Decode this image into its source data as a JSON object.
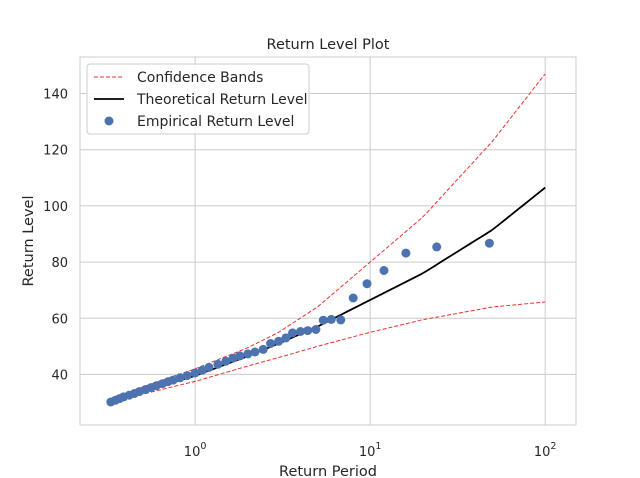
{
  "chart_data": {
    "type": "scatter",
    "title": "Return Level Plot",
    "xlabel": "Return Period",
    "ylabel": "Return Level",
    "xscale": "log",
    "xlim": [
      0.22,
      150
    ],
    "ylim": [
      22,
      153
    ],
    "grid": true,
    "legend_position": "top-left",
    "x_ticks": [
      {
        "value": 1,
        "base": "10",
        "exp": "0"
      },
      {
        "value": 10,
        "base": "10",
        "exp": "1"
      },
      {
        "value": 100,
        "base": "10",
        "exp": "2"
      }
    ],
    "y_ticks": [
      40,
      60,
      80,
      100,
      120,
      140
    ],
    "colors": {
      "empirical": "#4c72b0",
      "theoretical": "#000000",
      "confidence": "#e8312f",
      "grid": "#cccccc",
      "axes": "#cccccc"
    },
    "legend": [
      {
        "label": "Confidence Bands",
        "style": "dashed-line",
        "color": "#e8312f"
      },
      {
        "label": "Theoretical Return Level",
        "style": "line",
        "color": "#000000"
      },
      {
        "label": "Empirical Return Level",
        "style": "marker",
        "color": "#4c72b0"
      }
    ],
    "series": [
      {
        "name": "Confidence Bands",
        "kind": "dashed",
        "x": [
          0.33,
          0.5,
          1,
          2,
          3,
          5,
          10,
          20,
          50,
          100
        ],
        "values": [
          30.7,
          35.5,
          42.0,
          49.5,
          55.0,
          64.0,
          80.0,
          96.0,
          123.0,
          147.0
        ]
      },
      {
        "name": "Confidence Bands",
        "kind": "dashed",
        "x": [
          0.33,
          0.5,
          1,
          2,
          3,
          5,
          10,
          20,
          50,
          100
        ],
        "values": [
          29.4,
          33.0,
          37.5,
          43.0,
          46.0,
          50.0,
          55.0,
          59.5,
          64.0,
          65.8
        ]
      },
      {
        "name": "Theoretical Return Level",
        "kind": "line",
        "x": [
          0.33,
          0.5,
          1,
          2,
          3,
          5,
          10,
          20,
          50,
          100
        ],
        "values": [
          30.0,
          34.0,
          39.5,
          46.5,
          51.0,
          57.0,
          66.5,
          76.0,
          91.5,
          106.5
        ]
      },
      {
        "name": "Empirical Return Level",
        "kind": "scatter",
        "x": [
          0.33,
          0.35,
          0.37,
          0.39,
          0.42,
          0.45,
          0.48,
          0.52,
          0.56,
          0.6,
          0.65,
          0.7,
          0.75,
          0.82,
          0.9,
          1.0,
          1.1,
          1.2,
          1.35,
          1.5,
          1.65,
          1.8,
          2.0,
          2.2,
          2.45,
          2.7,
          3.0,
          3.3,
          3.6,
          4.0,
          4.4,
          4.9,
          5.4,
          6.0,
          6.8,
          8.0,
          9.6,
          12.0,
          16.0,
          24.0,
          48.0
        ],
        "values": [
          30.2,
          30.8,
          31.4,
          32.0,
          32.6,
          33.2,
          33.9,
          34.6,
          35.3,
          36.0,
          36.7,
          37.4,
          38.0,
          38.8,
          39.6,
          40.5,
          41.5,
          42.5,
          43.6,
          44.7,
          45.8,
          46.6,
          47.3,
          48.0,
          48.9,
          51.0,
          51.8,
          53.0,
          54.8,
          55.3,
          55.6,
          56.0,
          59.3,
          59.6,
          59.4,
          67.2,
          72.3,
          77.0,
          83.2,
          85.4,
          86.7
        ]
      }
    ]
  }
}
